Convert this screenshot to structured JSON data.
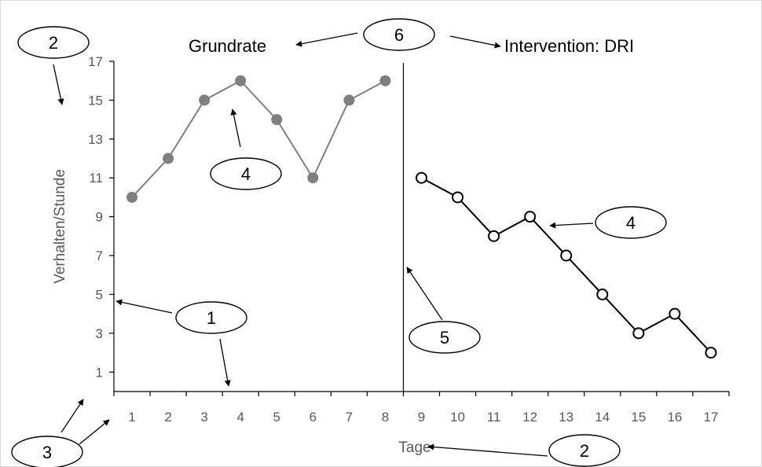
{
  "chart_data": {
    "type": "line",
    "xlabel": "Tage",
    "ylabel": "Verhalten/Stunde",
    "xlim": [
      0.5,
      17.5
    ],
    "ylim": [
      0,
      17
    ],
    "yticks": [
      1,
      3,
      5,
      7,
      9,
      11,
      13,
      15,
      17
    ],
    "xticks": [
      1,
      2,
      3,
      4,
      5,
      6,
      7,
      8,
      9,
      10,
      11,
      12,
      13,
      14,
      15,
      16,
      17
    ],
    "grid": false,
    "phase_change_x": 8.5,
    "phases": [
      {
        "label": "Grundrate"
      },
      {
        "label": "Intervention: DRI"
      }
    ],
    "series": [
      {
        "x": [
          1,
          2,
          3,
          4,
          5,
          6,
          7,
          8
        ],
        "values": [
          10,
          12,
          15,
          16,
          14,
          11,
          15,
          16
        ],
        "color": "#7f7f7f",
        "marker": "filled-circle"
      },
      {
        "x": [
          9,
          10,
          11,
          12,
          13,
          14,
          15,
          16,
          17
        ],
        "values": [
          11,
          10,
          8,
          9,
          7,
          5,
          3,
          4,
          2
        ],
        "color": "#000000",
        "marker": "open-circle"
      }
    ],
    "callouts": [
      "1",
      "2",
      "2",
      "3",
      "4",
      "4",
      "5",
      "6"
    ]
  }
}
